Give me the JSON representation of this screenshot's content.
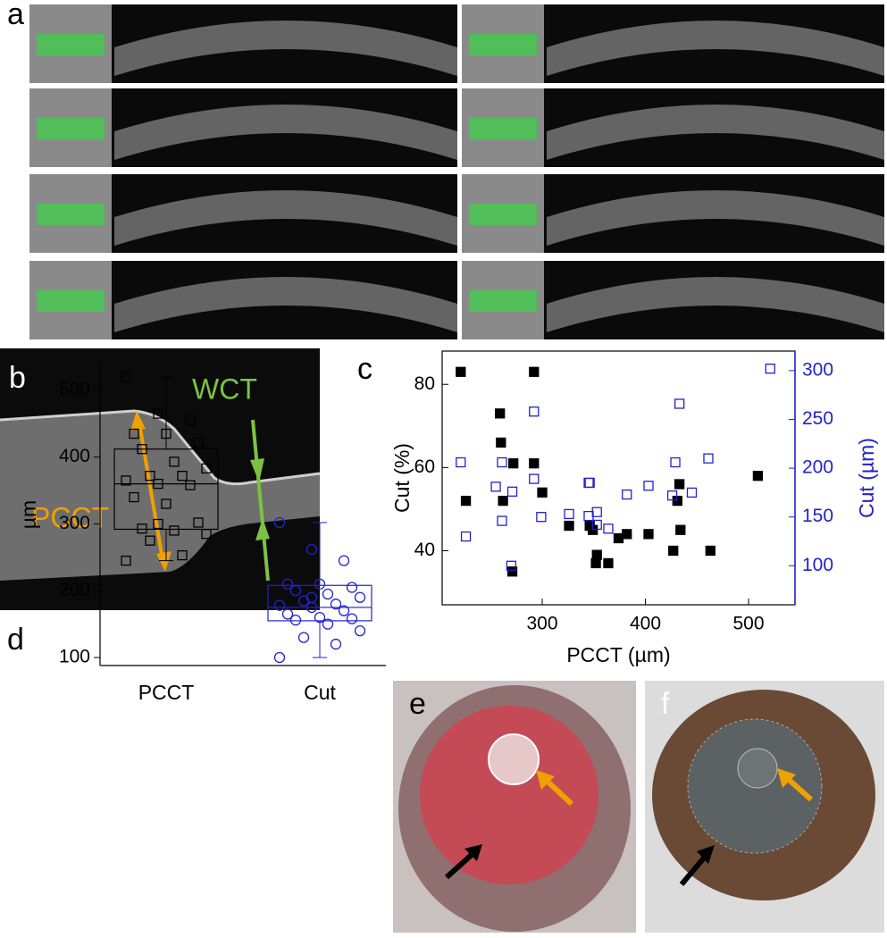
{
  "panel_labels": {
    "a": "a",
    "b": "b",
    "c": "c",
    "d": "d",
    "e": "e",
    "f": "f"
  },
  "annotations": {
    "pcct": "PCCT",
    "wct": "WCT"
  },
  "chart_data": [
    {
      "type": "scatter",
      "xlabel": "PCCT (µm)",
      "ylabel": "Cut (%)",
      "y2label": "Cut (µm)",
      "xlim": [
        203,
        545
      ],
      "xticks": [
        300,
        400,
        500
      ],
      "ylim": [
        27,
        88
      ],
      "yticks": [
        40,
        60,
        80
      ],
      "y2lim": [
        60,
        320
      ],
      "y2ticks": [
        100,
        150,
        200,
        250,
        300
      ],
      "y2color": "#2222cc",
      "series": [
        {
          "color": "#000000",
          "marker": "filled-square",
          "x": [
            221,
            226,
            260,
            259,
            272,
            262,
            271,
            292,
            292,
            300,
            326,
            346,
            349,
            353,
            352,
            364,
            374,
            382,
            403,
            427,
            434,
            431,
            433,
            463,
            509
          ],
          "values": [
            83,
            52,
            66,
            73,
            61,
            52,
            35,
            83,
            61,
            54,
            46,
            46,
            45,
            39,
            37,
            37,
            43,
            44,
            44,
            40,
            45,
            52,
            56,
            40,
            58
          ]
        },
        {
          "color": "#2222cc",
          "marker": "hollow-square",
          "axis": "y2",
          "x": [
            221,
            226,
            255,
            261,
            261,
            271,
            270,
            292,
            292,
            299,
            326,
            346,
            345,
            345,
            353,
            353,
            364,
            382,
            403,
            426,
            433,
            429,
            445,
            461,
            521
          ],
          "values": [
            206,
            130,
            181,
            146,
            206,
            176,
            100,
            258,
            189,
            150,
            153,
            185,
            185,
            151,
            155,
            142,
            138,
            173,
            182,
            172,
            266,
            206,
            175,
            210,
            302
          ]
        }
      ]
    },
    {
      "type": "box",
      "ylabel": "µm",
      "categories": [
        "PCCT",
        "Cut"
      ],
      "ylim": [
        88,
        540
      ],
      "yticks": [
        100,
        200,
        300,
        400,
        500
      ],
      "series": [
        {
          "color": "#000000",
          "marker": "hollow-square",
          "box": {
            "whislo": 245,
            "q1": 292,
            "med": 360,
            "q3": 412,
            "whishi": 520
          },
          "points": [
            520,
            465,
            455,
            435,
            435,
            422,
            412,
            393,
            383,
            372,
            372,
            365,
            360,
            358,
            340,
            330,
            302,
            293,
            290,
            285,
            275,
            253,
            245,
            300
          ]
        },
        {
          "color": "#2222cc",
          "marker": "hollow-circle",
          "box": {
            "whislo": 100,
            "q1": 155,
            "med": 175,
            "q3": 208,
            "whishi": 302
          },
          "points": [
            302,
            262,
            245,
            210,
            210,
            205,
            200,
            195,
            190,
            185,
            180,
            178,
            175,
            170,
            165,
            160,
            158,
            156,
            150,
            140,
            130,
            120,
            100,
            190
          ]
        }
      ]
    }
  ]
}
